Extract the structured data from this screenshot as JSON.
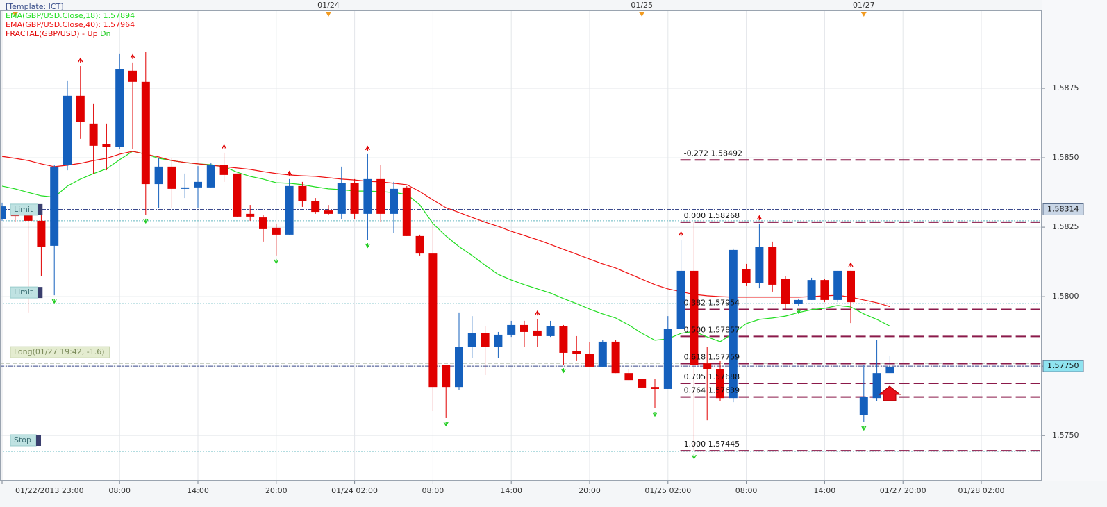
{
  "chart_data": {
    "type": "candlestick",
    "template": "[Template: ICT]",
    "fractal_label": "FRACTAL(GBP/USD) -",
    "fractal_up_label": "Up",
    "fractal_down_label": "Dn",
    "up_color": "#1560bd",
    "down_color": "#e00000",
    "fractal_up_color": "#e00000",
    "fractal_down_color": "#22cc22",
    "ylim": [
      1.57338,
      1.5903
    ],
    "yticks": [
      {
        "value": 1.575,
        "label": "1.5750"
      },
      1.5775,
      {
        "value": 1.58,
        "label": "1.5800"
      },
      1.5825,
      {
        "value": 1.585,
        "label": "1.5850"
      },
      1.5875
    ],
    "grid": true,
    "categories": [
      "01/22/2013 23:00",
      null,
      null,
      null,
      null,
      null,
      null,
      null,
      null,
      "08:00",
      null,
      null,
      null,
      null,
      null,
      "14:00",
      null,
      null,
      null,
      null,
      null,
      "20:00",
      null,
      null,
      null,
      null,
      null,
      "01/24 02:00",
      null,
      null,
      null,
      null,
      null,
      "08:00",
      null,
      null,
      null,
      null,
      null,
      "14:00",
      null,
      null,
      null,
      null,
      null,
      "20:00",
      null,
      null,
      null,
      null,
      null,
      "01/25 02:00",
      null,
      null,
      null,
      null,
      null,
      "08:00",
      null,
      null,
      null,
      null,
      null,
      "14:00",
      null,
      null,
      null,
      null,
      null,
      "01/27 20:00",
      null,
      null,
      null,
      null,
      null,
      "01/28 02:00",
      null,
      null,
      null,
      null
    ],
    "day_marks": [
      {
        "index": 1
      },
      {
        "index": 25,
        "label": "01/24"
      },
      {
        "index": 49,
        "label": "01/25"
      },
      {
        "index": 66,
        "label": "01/27"
      }
    ],
    "open": [
      1.5828,
      1.5831,
      1.58298,
      1.58273,
      1.58183,
      1.58473,
      1.58723,
      1.58623,
      1.58548,
      1.58538,
      1.58813,
      1.58773,
      1.58405,
      1.58468,
      1.58388,
      1.58393,
      1.58393,
      1.58473,
      1.58443,
      1.58298,
      1.58285,
      1.58248,
      1.58223,
      1.58398,
      1.58343,
      1.5831,
      1.58298,
      1.5841,
      1.58298,
      1.58423,
      1.58298,
      1.58393,
      1.58218,
      1.58155,
      1.57755,
      1.57675,
      1.57818,
      1.57868,
      1.57818,
      1.57863,
      1.57898,
      1.57878,
      1.57858,
      1.57893,
      1.57803,
      1.57793,
      1.57748,
      1.57838,
      1.57725,
      1.57705,
      1.57675,
      1.57668,
      1.57883,
      1.58093,
      1.5776,
      1.57738,
      1.57635,
      1.58098,
      1.58048,
      1.5818,
      1.58063,
      1.57975,
      1.57988,
      1.5806,
      1.57988,
      1.58093,
      1.57575,
      1.57635,
      1.57725,
      null,
      null,
      null,
      null,
      null,
      null,
      null,
      null,
      null,
      null,
      null
    ],
    "high": [
      1.58338,
      1.5833,
      1.5833,
      1.58318,
      1.58475,
      1.58778,
      1.5883,
      1.58693,
      1.58623,
      1.58873,
      1.58843,
      1.5888,
      1.58498,
      1.58498,
      1.58443,
      1.5847,
      1.5848,
      1.58518,
      1.58443,
      1.5833,
      1.58293,
      1.58263,
      1.58423,
      1.58413,
      1.58355,
      1.5833,
      1.58468,
      1.58423,
      1.58513,
      1.58475,
      1.58413,
      1.58398,
      1.58223,
      1.58263,
      1.57755,
      1.57943,
      1.5793,
      1.57893,
      1.57873,
      1.57913,
      1.57913,
      1.5792,
      1.57913,
      1.57898,
      1.57858,
      1.57838,
      1.57843,
      1.57843,
      1.57738,
      1.57705,
      1.57705,
      1.5793,
      1.58205,
      1.58268,
      1.57818,
      1.57768,
      1.58173,
      1.58118,
      1.58263,
      1.58198,
      1.58073,
      1.57993,
      1.58068,
      1.58063,
      1.58093,
      1.58093,
      1.57755,
      1.57843,
      1.57788,
      null,
      null,
      null,
      null,
      null,
      null,
      null,
      null,
      null,
      null,
      null
    ],
    "low": [
      1.58273,
      1.58268,
      1.57943,
      1.58073,
      1.58005,
      1.58455,
      1.58568,
      1.58443,
      1.58455,
      1.5853,
      1.5853,
      1.58293,
      1.58318,
      1.58318,
      1.58355,
      1.58318,
      1.58393,
      1.58413,
      1.58288,
      1.58273,
      1.58198,
      1.58148,
      1.58223,
      1.58323,
      1.58298,
      1.58293,
      1.5828,
      1.5828,
      1.58205,
      1.58268,
      1.5823,
      1.58218,
      1.58148,
      1.57588,
      1.57563,
      1.57663,
      1.5778,
      1.57718,
      1.5778,
      1.57855,
      1.57818,
      1.57818,
      1.57855,
      1.57755,
      1.57768,
      1.57748,
      1.57748,
      1.57725,
      1.577,
      1.57673,
      1.57598,
      1.57668,
      1.57883,
      1.57445,
      1.57555,
      1.57623,
      1.5762,
      1.58038,
      1.5803,
      1.58018,
      1.57955,
      1.57968,
      1.57988,
      1.5798,
      1.5798,
      1.57905,
      1.57548,
      1.57623,
      1.57725,
      null,
      null,
      null,
      null,
      null,
      null,
      null,
      null,
      null,
      null,
      null
    ],
    "close": [
      1.58325,
      1.5829,
      1.58273,
      1.5818,
      1.58468,
      1.58723,
      1.5863,
      1.58543,
      1.58538,
      1.58818,
      1.58773,
      1.58405,
      1.58468,
      1.58388,
      1.58393,
      1.58413,
      1.58473,
      1.58438,
      1.58288,
      1.58288,
      1.58243,
      1.58223,
      1.58398,
      1.58343,
      1.58305,
      1.58298,
      1.5841,
      1.58298,
      1.58423,
      1.58298,
      1.58388,
      1.58218,
      1.58155,
      1.57675,
      1.57675,
      1.57818,
      1.57868,
      1.57818,
      1.57863,
      1.57898,
      1.57873,
      1.57858,
      1.57893,
      1.57798,
      1.57793,
      1.57748,
      1.57838,
      1.57725,
      1.577,
      1.57673,
      1.57668,
      1.57883,
      1.58093,
      1.57755,
      1.57738,
      1.57635,
      1.58168,
      1.58048,
      1.5818,
      1.58043,
      1.57975,
      1.57988,
      1.5806,
      1.57988,
      1.58093,
      1.5798,
      1.57638,
      1.57725,
      1.57748,
      null,
      null,
      null,
      null,
      null,
      null,
      null,
      null,
      null,
      null,
      null
    ],
    "series": [
      {
        "name": "EMA(GBP/USD.Close,18): 1.57894",
        "color": "#22dd22",
        "values": [
          1.58398,
          1.58388,
          1.58375,
          1.58363,
          1.58358,
          1.58398,
          1.58423,
          1.58443,
          1.5846,
          1.58493,
          1.58523,
          1.58513,
          1.58498,
          1.5849,
          1.58483,
          1.58478,
          1.58475,
          1.58468,
          1.58448,
          1.58433,
          1.58423,
          1.5841,
          1.58408,
          1.58403,
          1.58395,
          1.58388,
          1.58385,
          1.5838,
          1.5838,
          1.58378,
          1.58375,
          1.58368,
          1.5833,
          1.58263,
          1.58218,
          1.5818,
          1.58148,
          1.58113,
          1.5808,
          1.5806,
          1.58043,
          1.58028,
          1.58013,
          1.57993,
          1.57975,
          1.57955,
          1.57938,
          1.57923,
          1.57898,
          1.57868,
          1.57843,
          1.57848,
          1.57868,
          1.57875,
          1.57855,
          1.57838,
          1.57868,
          1.57903,
          1.57918,
          1.57923,
          1.5793,
          1.57943,
          1.57953,
          1.57958,
          1.57968,
          1.57963,
          1.57938,
          1.57918,
          1.57894,
          null,
          null,
          null,
          null,
          null,
          null,
          null,
          null,
          null,
          null,
          null
        ]
      },
      {
        "name": "EMA(GBP/USD.Close,40): 1.57964",
        "color": "#ee1111",
        "values": [
          1.58505,
          1.58498,
          1.5849,
          1.58478,
          1.58468,
          1.58473,
          1.5848,
          1.5849,
          1.58498,
          1.58513,
          1.58523,
          1.58513,
          1.58503,
          1.5849,
          1.58483,
          1.58478,
          1.58473,
          1.58468,
          1.58463,
          1.58458,
          1.5845,
          1.58443,
          1.58438,
          1.58435,
          1.58433,
          1.58428,
          1.58423,
          1.5842,
          1.58415,
          1.58413,
          1.58408,
          1.58403,
          1.58378,
          1.58348,
          1.5832,
          1.58303,
          1.58285,
          1.58268,
          1.58253,
          1.58235,
          1.5822,
          1.58205,
          1.58188,
          1.5817,
          1.58153,
          1.58135,
          1.58118,
          1.58103,
          1.58083,
          1.58063,
          1.58043,
          1.58028,
          1.58018,
          1.58008,
          1.58003,
          1.58,
          1.57998,
          1.57998,
          1.57998,
          1.57998,
          1.57998,
          1.57998,
          1.58,
          1.58003,
          1.58005,
          1.57998,
          1.57988,
          1.57978,
          1.57964,
          null,
          null,
          null,
          null,
          null,
          null,
          null,
          null,
          null,
          null,
          null
        ]
      }
    ],
    "fractal_up": [
      6,
      10,
      17,
      22,
      28,
      41,
      52,
      58,
      65
    ],
    "fractal_down": [
      4,
      11,
      21,
      28,
      34,
      43,
      50,
      53,
      61,
      66
    ],
    "fib_color": "#8b1a4a",
    "fib_levels": [
      {
        "label": "-0.272 1.58492",
        "value": 1.58492
      },
      {
        "label": "0.000 1.58268",
        "value": 1.58268
      },
      {
        "label": "0.382 1.57954",
        "value": 1.57954
      },
      {
        "label": "0.500 1.57857",
        "value": 1.57857
      },
      {
        "label": "0.618 1.57759",
        "value": 1.57759
      },
      {
        "label": "0.705 1.57688",
        "value": 1.57688
      },
      {
        "label": "0.764 1.57639",
        "value": 1.57639
      },
      {
        "label": "1.000 1.57445",
        "value": 1.57445
      }
    ],
    "orders": [
      {
        "label": "Limit",
        "value": 1.58273
      },
      {
        "label": "Limit",
        "value": 1.57975
      },
      {
        "label": "Long(01/27 19:42, -1.6)",
        "value": 1.5776
      },
      {
        "label": "Stop",
        "value": 1.57443
      }
    ],
    "price_lines": [
      {
        "label": "1.58314",
        "value": 1.58314
      },
      {
        "label": "1.57750",
        "value": 1.5775
      }
    ]
  }
}
